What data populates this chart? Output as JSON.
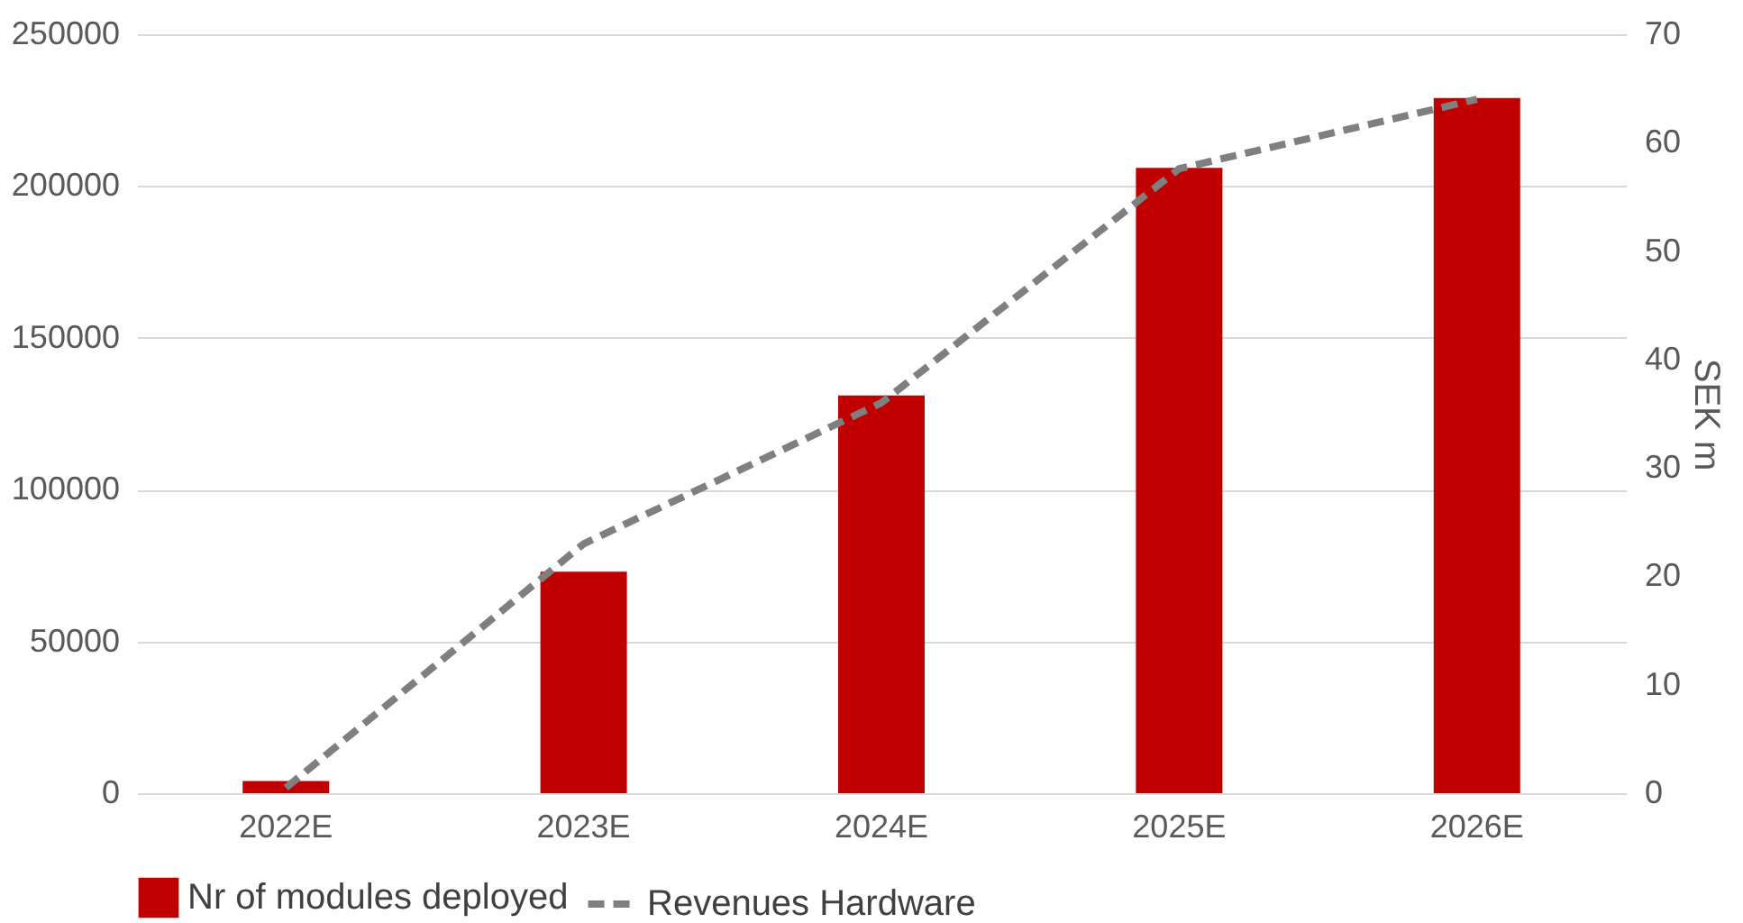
{
  "chart_data": {
    "type": "bar",
    "categories": [
      "2022E",
      "2023E",
      "2024E",
      "2025E",
      "2026E"
    ],
    "series": [
      {
        "name": "Nr of modules deployed",
        "color": "#c00000",
        "values": [
          4000,
          73000,
          131000,
          206000,
          229000
        ]
      },
      {
        "name": "Revenues Hardware",
        "type": "line",
        "axis": "y2",
        "color": "#7f7f7f",
        "line_style": "dashed",
        "values": [
          0.5,
          23,
          36,
          57.6,
          64
        ]
      }
    ],
    "ylim": [
      0,
      250000
    ],
    "yticks": [
      0,
      50000,
      100000,
      150000,
      200000,
      250000
    ],
    "y2lim": [
      0,
      70
    ],
    "y2ticks": [
      0,
      10,
      20,
      30,
      40,
      50,
      60,
      70
    ],
    "y2label": "SEK m",
    "grid": "y",
    "legend": "bottom",
    "marker": "none"
  }
}
